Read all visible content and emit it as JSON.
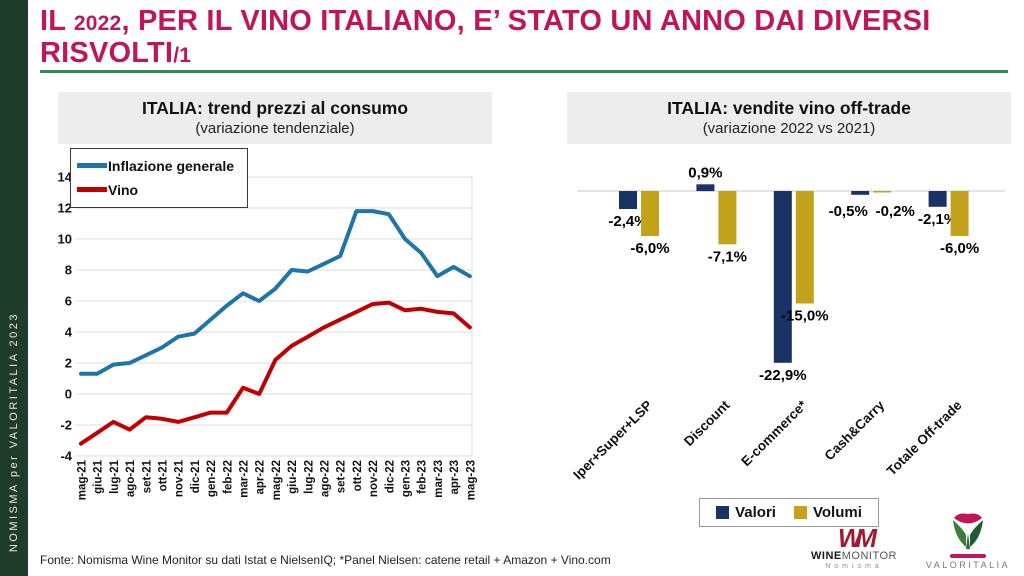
{
  "title": {
    "seg1": "IL ",
    "seg1_small": "2022",
    "seg2": ", PER IL VINO ITALIANO, E’ STATO UN ANNO DAI DIVERSI RISVOLTI",
    "seg2_small": "/1"
  },
  "sidebar": {
    "text": "NOMISMA per VALORITALIA 2023"
  },
  "footer": {
    "source": "Fonte: Nomisma Wine Monitor su dati Istat e NielsenIQ; *Panel Nielsen: catene retail + Amazon + Vino.com"
  },
  "logos": {
    "wine_monitor": {
      "mark": "WM",
      "name_bold": "WINE",
      "name_rest": "MONITOR",
      "sub": "Nomisma"
    },
    "valoritalia": {
      "name": "VALORITALIA"
    }
  },
  "colors": {
    "title": "#BE155B",
    "rule": "#2F8C55",
    "sidebar": "#1E3B2C",
    "header_bg": "#EDEDED",
    "grid": "#DCDCDC",
    "wm_red": "#9E1B32",
    "logo_gray": "#777777"
  },
  "chart_data": [
    {
      "id": "prezzi-consumo",
      "type": "line",
      "title": "ITALIA: trend prezzi al consumo",
      "subtitle": "(variazione tendenziale)",
      "x": [
        "mag-21",
        "giu-21",
        "lug-21",
        "ago-21",
        "set-21",
        "ott-21",
        "nov-21",
        "dic-21",
        "gen-22",
        "feb-22",
        "mar-22",
        "apr-22",
        "mag-22",
        "giu-22",
        "lug-22",
        "ago-22",
        "set-22",
        "ott-22",
        "nov-22",
        "dic-22",
        "gen-23",
        "feb-23",
        "mar-23",
        "apr-23",
        "mag-23"
      ],
      "series": [
        {
          "name": "Inflazione generale",
          "color": "#1F74A8",
          "values": [
            1.3,
            1.3,
            1.9,
            2.0,
            2.5,
            3.0,
            3.7,
            3.9,
            4.8,
            5.7,
            6.5,
            6.0,
            6.8,
            8.0,
            7.9,
            8.4,
            8.9,
            11.8,
            11.8,
            11.6,
            10.0,
            9.1,
            7.6,
            8.2,
            7.6
          ]
        },
        {
          "name": "Vino",
          "color": "#C00000",
          "values": [
            -3.2,
            -2.5,
            -1.8,
            -2.3,
            -1.5,
            -1.6,
            -1.8,
            -1.5,
            -1.2,
            -1.2,
            0.4,
            0.0,
            2.2,
            3.1,
            3.7,
            4.3,
            4.8,
            5.3,
            5.8,
            5.9,
            5.4,
            5.5,
            5.3,
            5.2,
            4.3
          ]
        }
      ],
      "ylim": [
        -4,
        14
      ],
      "ytick_step": 2,
      "grid": true,
      "legend_position": "top-left"
    },
    {
      "id": "vendite-offtrade",
      "type": "bar",
      "title": "ITALIA: vendite vino off-trade",
      "subtitle": "(variazione 2022 vs 2021)",
      "categories": [
        "Iper+Super+LSP",
        "Discount",
        "E-commerce*",
        "Cash&Carry",
        "Totale Off-trade"
      ],
      "series": [
        {
          "name": "Valori",
          "color": "#1A3365",
          "values": [
            -2.4,
            0.9,
            -22.9,
            -0.5,
            -2.1
          ],
          "labels": [
            "-2,4%",
            "0,9%",
            "-22,9%",
            "-0,5%",
            "-2,1%"
          ]
        },
        {
          "name": "Volumi",
          "color": "#C3A21C",
          "values": [
            -6.0,
            -7.1,
            -15.0,
            -0.2,
            -6.0
          ],
          "labels": [
            "-6,0%",
            "-7,1%",
            "-15,0%",
            "-0,2%",
            "-6,0%"
          ]
        }
      ],
      "grid": false,
      "legend_position": "bottom"
    }
  ]
}
